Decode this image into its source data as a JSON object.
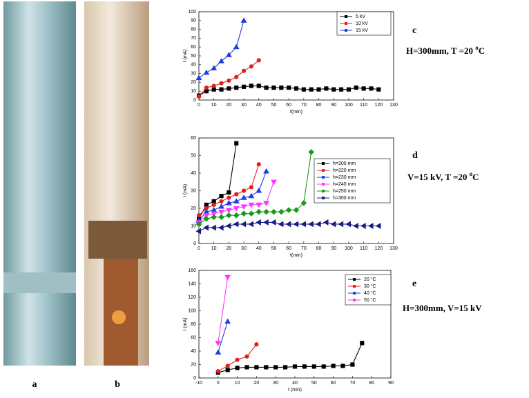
{
  "panels": {
    "a": "a",
    "b": "b"
  },
  "annotations": [
    {
      "letter": "c",
      "text": "H=300mm, T =20 ",
      "sup": "o",
      "tail": "C"
    },
    {
      "letter": "d",
      "text": "V=15 kV, T =20 ",
      "sup": "o",
      "tail": "C"
    },
    {
      "letter": "e",
      "text": "H=300mm, V=15 kV"
    }
  ],
  "chart_data": [
    {
      "type": "line",
      "xlabel": "t(min)",
      "ylabel": "I (mA)",
      "xlim": [
        0,
        130
      ],
      "ylim": [
        0,
        100
      ],
      "xticks": [
        0,
        10,
        20,
        30,
        40,
        50,
        60,
        70,
        80,
        90,
        100,
        110,
        120,
        130
      ],
      "yticks": [
        0,
        10,
        20,
        30,
        40,
        50,
        60,
        70,
        80,
        90,
        100
      ],
      "series": [
        {
          "name": "5 kV",
          "color": "#000000",
          "marker": "square",
          "x": [
            0,
            5,
            10,
            15,
            20,
            25,
            30,
            35,
            40,
            45,
            50,
            55,
            60,
            65,
            70,
            75,
            80,
            85,
            90,
            95,
            100,
            105,
            110,
            115,
            120
          ],
          "values": [
            5,
            10,
            12,
            12,
            13,
            14,
            15,
            16,
            16,
            14,
            14,
            14,
            14,
            13,
            12,
            12,
            12,
            13,
            12,
            12,
            12,
            14,
            13,
            13,
            12
          ]
        },
        {
          "name": "10 kV",
          "color": "#e0201b",
          "marker": "circle",
          "x": [
            0,
            5,
            10,
            15,
            20,
            25,
            30,
            35,
            40
          ],
          "values": [
            4,
            14,
            16,
            19,
            22,
            26,
            33,
            38,
            45
          ]
        },
        {
          "name": "15 kV",
          "color": "#1f3fe0",
          "marker": "triangle",
          "x": [
            0,
            5,
            10,
            15,
            20,
            25,
            30
          ],
          "values": [
            25,
            31,
            36,
            44,
            51,
            60,
            90
          ]
        }
      ]
    },
    {
      "type": "line",
      "xlabel": "t(min)",
      "ylabel": "I (mA)",
      "xlim": [
        0,
        130
      ],
      "ylim": [
        0,
        60
      ],
      "xticks": [
        0,
        10,
        20,
        30,
        40,
        50,
        60,
        70,
        80,
        90,
        100,
        110,
        120,
        130
      ],
      "yticks": [
        0,
        10,
        20,
        30,
        40,
        50,
        60
      ],
      "series": [
        {
          "name": "h=200 mm",
          "color": "#000000",
          "marker": "square",
          "x": [
            0,
            5,
            10,
            15,
            20,
            25
          ],
          "values": [
            14,
            22,
            24,
            27,
            29,
            57
          ]
        },
        {
          "name": "h=220 mm",
          "color": "#e0201b",
          "marker": "circle",
          "x": [
            0,
            5,
            10,
            15,
            20,
            25,
            30,
            35,
            40
          ],
          "values": [
            16,
            20,
            22,
            24,
            26,
            28,
            30,
            32,
            45
          ]
        },
        {
          "name": "h=230 mm",
          "color": "#1f3fe0",
          "marker": "triangle",
          "x": [
            0,
            5,
            10,
            15,
            20,
            25,
            30,
            35,
            40,
            45
          ],
          "values": [
            13,
            18,
            19,
            21,
            23,
            24,
            26,
            27,
            30,
            41
          ]
        },
        {
          "name": "h=240 mm",
          "color": "#ff33ff",
          "marker": "tridown",
          "x": [
            0,
            5,
            10,
            15,
            20,
            25,
            30,
            35,
            40,
            45,
            50
          ],
          "values": [
            12,
            16,
            17,
            18,
            19,
            20,
            21,
            22,
            22,
            23,
            35
          ]
        },
        {
          "name": "h=250 mm",
          "color": "#1a9a1a",
          "marker": "diamond",
          "x": [
            0,
            5,
            10,
            15,
            20,
            25,
            30,
            35,
            40,
            45,
            50,
            55,
            60,
            65,
            70,
            75
          ],
          "values": [
            11,
            14,
            15,
            15,
            16,
            16,
            17,
            17,
            18,
            18,
            18,
            18,
            19,
            19,
            23,
            52
          ]
        },
        {
          "name": "h=300 mm",
          "color": "#1a1a80",
          "marker": "trileft",
          "x": [
            0,
            5,
            10,
            15,
            20,
            25,
            30,
            35,
            40,
            45,
            50,
            55,
            60,
            65,
            70,
            75,
            80,
            85,
            90,
            95,
            100,
            105,
            110,
            115,
            120
          ],
          "values": [
            7,
            9,
            9,
            9,
            10,
            11,
            11,
            11,
            12,
            12,
            12,
            11,
            11,
            11,
            11,
            11,
            11,
            12,
            11,
            11,
            11,
            10,
            10,
            10,
            10
          ]
        }
      ]
    },
    {
      "type": "line",
      "xlabel": "t (min)",
      "ylabel": "I (mA)",
      "xlim": [
        -10,
        90
      ],
      "ylim": [
        0,
        160
      ],
      "xticks": [
        -10,
        0,
        10,
        20,
        30,
        40,
        50,
        60,
        70,
        80,
        90
      ],
      "yticks": [
        0,
        20,
        40,
        60,
        80,
        100,
        120,
        140,
        160
      ],
      "series": [
        {
          "name": "20 °C",
          "color": "#000000",
          "marker": "square",
          "x": [
            0,
            5,
            10,
            15,
            20,
            25,
            30,
            35,
            40,
            45,
            50,
            55,
            60,
            65,
            70,
            75
          ],
          "values": [
            8,
            12,
            15,
            16,
            16,
            16,
            16,
            16,
            17,
            17,
            17,
            17,
            18,
            18,
            20,
            52
          ]
        },
        {
          "name": "30 °C",
          "color": "#e0201b",
          "marker": "circle",
          "x": [
            0,
            5,
            10,
            15,
            20
          ],
          "values": [
            10,
            18,
            27,
            32,
            50
          ]
        },
        {
          "name": "40 °C",
          "color": "#1f3fe0",
          "marker": "triangle",
          "x": [
            0,
            5
          ],
          "values": [
            38,
            84
          ]
        },
        {
          "name": "50 °C",
          "color": "#ff33ff",
          "marker": "tridown",
          "x": [
            0,
            5
          ],
          "values": [
            52,
            150
          ]
        }
      ]
    }
  ]
}
